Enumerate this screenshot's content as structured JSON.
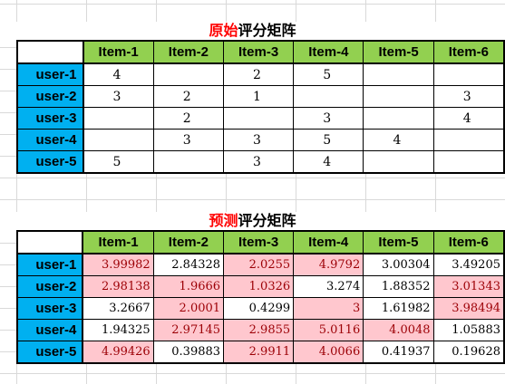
{
  "original": {
    "title_lead": "原始",
    "title_rest": "评分矩阵",
    "columns": [
      "Item-1",
      "Item-2",
      "Item-3",
      "Item-4",
      "Item-5",
      "Item-6"
    ],
    "rows": [
      {
        "user": "user-1",
        "values": [
          "4",
          "",
          "2",
          "5",
          "",
          ""
        ]
      },
      {
        "user": "user-2",
        "values": [
          "3",
          "2",
          "1",
          "",
          "",
          "3"
        ]
      },
      {
        "user": "user-3",
        "values": [
          "",
          "2",
          "",
          "3",
          "",
          "4"
        ]
      },
      {
        "user": "user-4",
        "values": [
          "",
          "3",
          "3",
          "5",
          "4",
          ""
        ]
      },
      {
        "user": "user-5",
        "values": [
          "5",
          "",
          "3",
          "4",
          "",
          ""
        ]
      }
    ]
  },
  "predicted": {
    "title_lead": "预测",
    "title_rest": "评分矩阵",
    "columns": [
      "Item-1",
      "Item-2",
      "Item-3",
      "Item-4",
      "Item-5",
      "Item-6"
    ],
    "rows": [
      {
        "user": "user-1",
        "values": [
          "3.99982",
          "2.84328",
          "2.0255",
          "4.9792",
          "3.00304",
          "3.49205"
        ]
      },
      {
        "user": "user-2",
        "values": [
          "2.98138",
          "1.9666",
          "1.0326",
          "3.274",
          "1.88352",
          "3.01343"
        ]
      },
      {
        "user": "user-3",
        "values": [
          "3.2667",
          "2.0001",
          "0.4299",
          "3",
          "1.61982",
          "3.98494"
        ]
      },
      {
        "user": "user-4",
        "values": [
          "1.94325",
          "2.97145",
          "2.9855",
          "5.0116",
          "4.0048",
          "1.05883"
        ]
      },
      {
        "user": "user-5",
        "values": [
          "4.99426",
          "0.39883",
          "2.9911",
          "4.0066",
          "0.41937",
          "0.19628"
        ]
      }
    ]
  },
  "colors": {
    "header_green": "#92d050",
    "row_blue": "#00b0f0",
    "highlight_pink": "#ffc7ce",
    "title_red": "#ff0000"
  }
}
